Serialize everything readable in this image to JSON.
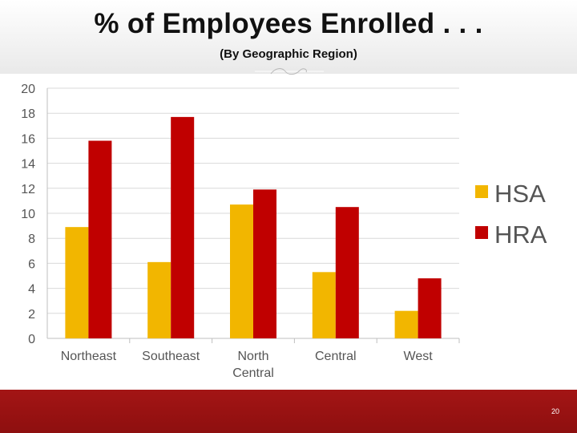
{
  "slide": {
    "title": "% of Employees Enrolled . . .",
    "subtitle": "(By Geographic Region)",
    "page_number": "20",
    "footer_color": "#9b1212"
  },
  "chart_data": {
    "type": "bar",
    "categories": [
      [
        "Northeast"
      ],
      [
        "Southeast"
      ],
      [
        "North",
        "Central"
      ],
      [
        "Central"
      ],
      [
        "West"
      ]
    ],
    "series": [
      {
        "name": "HSA",
        "color": "#f2b600",
        "values": [
          8.9,
          6.1,
          10.7,
          5.3,
          2.2
        ]
      },
      {
        "name": "HRA",
        "color": "#c00000",
        "values": [
          15.8,
          17.7,
          11.9,
          10.5,
          4.8
        ]
      }
    ],
    "y_ticks": [
      "0",
      "2",
      "4",
      "6",
      "8",
      "10",
      "12",
      "14",
      "16",
      "18",
      "20"
    ],
    "ylim": [
      0,
      20
    ],
    "grid": true,
    "legend_position": "right"
  }
}
